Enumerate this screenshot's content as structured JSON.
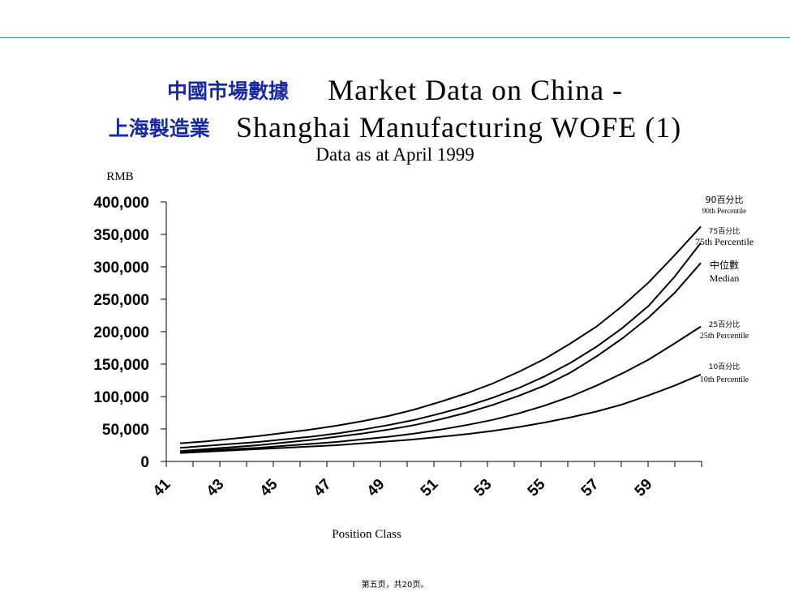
{
  "header": {
    "title_cn_1": "中國市場數據",
    "title_en_1": "Market Data on China -",
    "title_cn_2": "上海製造業",
    "title_en_2": "Shanghai Manufacturing WOFE (1)",
    "subtitle": "Data as at April 1999"
  },
  "footer": {
    "page_text": "第五页，共20页。"
  },
  "colors": {
    "accent_rule": "#2a9a9a",
    "cn_title": "#1a2aa0",
    "line": "#000000"
  },
  "chart_data": {
    "type": "line",
    "title": "Market Data on China - Shanghai Manufacturing WOFE (1)",
    "subtitle": "Data as at April 1999",
    "xlabel": "Position Class",
    "ylabel": "RMB",
    "x": [
      41,
      42,
      43,
      44,
      45,
      46,
      47,
      48,
      49,
      50,
      51,
      52,
      53,
      54,
      55,
      56,
      57,
      58,
      59,
      60,
      61
    ],
    "x_ticks": [
      "41",
      "43",
      "45",
      "47",
      "49",
      "51",
      "53",
      "55",
      "57",
      "59"
    ],
    "y_ticks": [
      "0",
      "50,000",
      "100,000",
      "150,000",
      "200,000",
      "250,000",
      "300,000",
      "350,000",
      "400,000"
    ],
    "ylim": [
      0,
      400000
    ],
    "xlim": [
      41,
      61
    ],
    "grid": false,
    "series": [
      {
        "name": "90th Percentile",
        "label_cn": "90百分比",
        "label_en": "90th Percentile",
        "values": [
          28000,
          31000,
          35000,
          39000,
          44000,
          49000,
          55000,
          62000,
          70000,
          80000,
          92000,
          105000,
          120000,
          138000,
          158000,
          182000,
          208000,
          240000,
          276000,
          318000,
          362000
        ]
      },
      {
        "name": "75th Percentile",
        "label_cn": "75百分比",
        "label_en": "75th Percentile",
        "values": [
          21000,
          24000,
          27000,
          30000,
          34000,
          38000,
          43000,
          49000,
          56000,
          64000,
          74000,
          85000,
          98000,
          113000,
          131000,
          152000,
          177000,
          206000,
          240000,
          285000,
          337000
        ]
      },
      {
        "name": "Median",
        "label_cn": "中位數",
        "label_en": "Median",
        "values": [
          16000,
          19000,
          22000,
          25000,
          29000,
          33000,
          38000,
          43000,
          49000,
          56000,
          65000,
          75000,
          87000,
          101000,
          117000,
          137000,
          162000,
          190000,
          222000,
          260000,
          306000
        ]
      },
      {
        "name": "25th Percentile",
        "label_cn": "25百分比",
        "label_en": "25th Percentile",
        "values": [
          15000,
          17000,
          19000,
          21000,
          24000,
          27000,
          30000,
          34000,
          38000,
          43000,
          49000,
          56000,
          64000,
          74000,
          86000,
          100000,
          117000,
          136000,
          157000,
          182000,
          208000
        ]
      },
      {
        "name": "10th Percentile",
        "label_cn": "10百分比",
        "label_en": "10th Percentile",
        "values": [
          13000,
          15000,
          17000,
          19000,
          21000,
          23000,
          25000,
          28000,
          31000,
          34000,
          38000,
          42000,
          47000,
          53000,
          60000,
          68000,
          77000,
          88000,
          102000,
          117000,
          134000
        ]
      }
    ]
  }
}
